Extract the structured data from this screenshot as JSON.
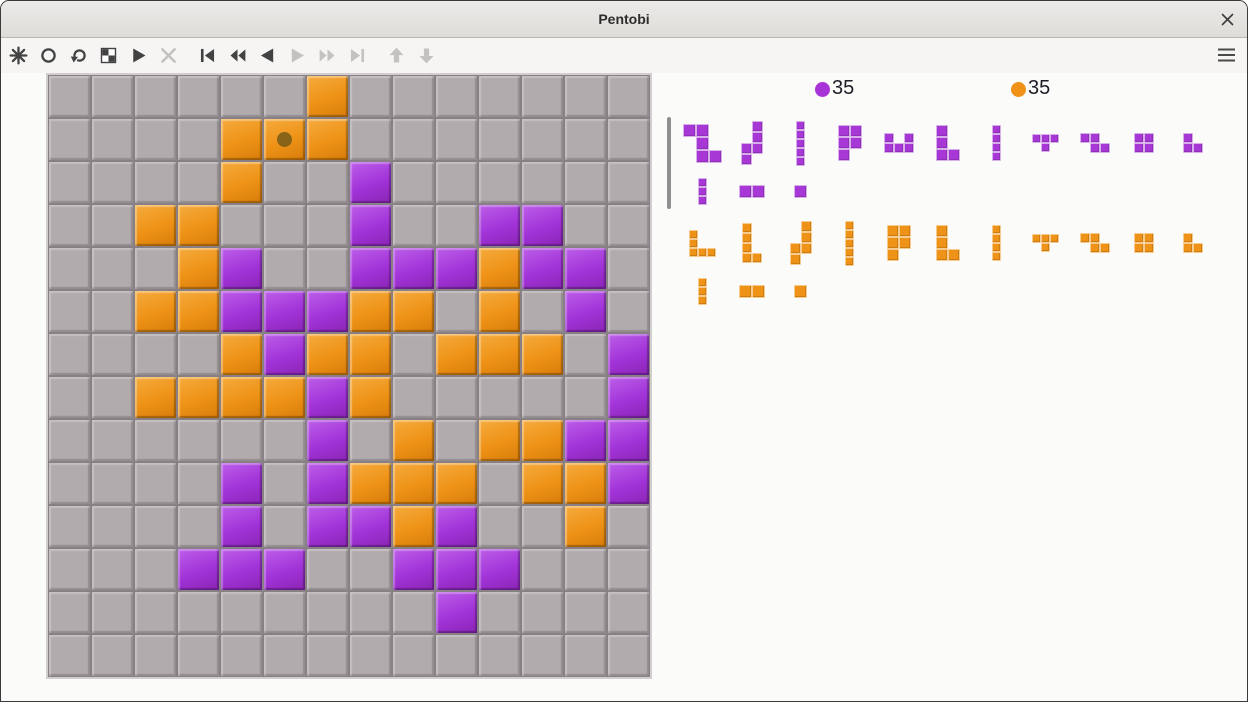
{
  "window": {
    "title": "Pentobi"
  },
  "toolbar": {
    "icons": [
      {
        "name": "new-game-icon",
        "enabled": true,
        "group_start": false
      },
      {
        "name": "rated-game-icon",
        "enabled": true,
        "group_start": false
      },
      {
        "name": "undo-move-icon",
        "enabled": true,
        "group_start": false
      },
      {
        "name": "computer-colors-icon",
        "enabled": true,
        "group_start": false
      },
      {
        "name": "play-move-icon",
        "enabled": true,
        "group_start": false
      },
      {
        "name": "stop-icon",
        "enabled": false,
        "group_start": false
      },
      {
        "name": "go-beginning-icon",
        "enabled": true,
        "group_start": true
      },
      {
        "name": "back-ten-icon",
        "enabled": true,
        "group_start": false
      },
      {
        "name": "back-icon",
        "enabled": true,
        "group_start": false
      },
      {
        "name": "forward-icon",
        "enabled": false,
        "group_start": false
      },
      {
        "name": "forward-ten-icon",
        "enabled": false,
        "group_start": false
      },
      {
        "name": "go-end-icon",
        "enabled": false,
        "group_start": false
      },
      {
        "name": "previous-variation-icon",
        "enabled": false,
        "group_start": true
      },
      {
        "name": "next-variation-icon",
        "enabled": false,
        "group_start": false
      }
    ],
    "menu_icon": "hamburger-icon"
  },
  "scores": {
    "purple": {
      "value": "35",
      "color": "#a834d8"
    },
    "orange": {
      "value": "35",
      "color": "#f09218"
    }
  },
  "board": {
    "size": 14,
    "rows": [
      "......O.......",
      "....OOO.......",
      "....O..P......",
      "..OO...P..PP..",
      "...OP..PPPOPP.",
      "..OOPPPOO.O.P.",
      "....OPOO.OOO.P",
      "..OOOOPO.....P",
      "......P.O.OOPP",
      "....P.POOO.OOP",
      "....P.PPOP..O.",
      "...PPP..PPP...",
      ".........P....",
      ".............."
    ],
    "last_move": {
      "row": 1,
      "col": 5
    }
  },
  "trays": {
    "purple": {
      "active": true,
      "rows": [
        [
          "W5",
          "N5",
          "I5",
          "P5",
          "U5",
          "L4",
          "I4",
          "T4",
          "Z4",
          "O4",
          "V3"
        ],
        [
          "I3",
          "I2",
          "P1"
        ]
      ]
    },
    "orange": {
      "active": false,
      "rows": [
        [
          "V5",
          "L5",
          "N5",
          "I5",
          "P5",
          "L4",
          "I4",
          "T4",
          "Z4",
          "O4",
          "V3"
        ],
        [
          "I3",
          "I2",
          "P1"
        ]
      ]
    }
  },
  "pieces": {
    "W5": {
      "cells": [
        [
          0,
          0
        ],
        [
          1,
          0
        ],
        [
          1,
          1
        ],
        [
          1,
          2
        ],
        [
          2,
          2
        ]
      ],
      "cell": 13
    },
    "N5": {
      "cells": [
        [
          1,
          0
        ],
        [
          1,
          1
        ],
        [
          1,
          2
        ],
        [
          0,
          2
        ],
        [
          0,
          3
        ]
      ],
      "cell": 11
    },
    "I5": {
      "cells": [
        [
          0,
          0
        ],
        [
          0,
          1
        ],
        [
          0,
          2
        ],
        [
          0,
          3
        ],
        [
          0,
          4
        ]
      ],
      "cell": 9
    },
    "P5": {
      "cells": [
        [
          0,
          0
        ],
        [
          1,
          0
        ],
        [
          0,
          1
        ],
        [
          1,
          1
        ],
        [
          0,
          2
        ]
      ],
      "cell": 12
    },
    "U5": {
      "cells": [
        [
          0,
          0
        ],
        [
          2,
          0
        ],
        [
          0,
          1
        ],
        [
          1,
          1
        ],
        [
          2,
          1
        ]
      ],
      "cell": 10
    },
    "V5": {
      "cells": [
        [
          0,
          0
        ],
        [
          0,
          1
        ],
        [
          0,
          2
        ],
        [
          1,
          2
        ],
        [
          2,
          2
        ]
      ],
      "cell": 9
    },
    "L5": {
      "cells": [
        [
          0,
          0
        ],
        [
          0,
          1
        ],
        [
          0,
          2
        ],
        [
          0,
          3
        ],
        [
          1,
          3
        ]
      ],
      "cell": 10
    },
    "L4": {
      "cells": [
        [
          0,
          0
        ],
        [
          0,
          1
        ],
        [
          0,
          2
        ],
        [
          1,
          2
        ]
      ],
      "cell": 12
    },
    "I4": {
      "cells": [
        [
          0,
          0
        ],
        [
          0,
          1
        ],
        [
          0,
          2
        ],
        [
          0,
          3
        ]
      ],
      "cell": 9
    },
    "T4": {
      "cells": [
        [
          0,
          0
        ],
        [
          1,
          0
        ],
        [
          2,
          0
        ],
        [
          1,
          1
        ]
      ],
      "cell": 9
    },
    "Z4": {
      "cells": [
        [
          0,
          0
        ],
        [
          1,
          0
        ],
        [
          1,
          1
        ],
        [
          2,
          1
        ]
      ],
      "cell": 10
    },
    "O4": {
      "cells": [
        [
          0,
          0
        ],
        [
          1,
          0
        ],
        [
          0,
          1
        ],
        [
          1,
          1
        ]
      ],
      "cell": 10
    },
    "V3": {
      "cells": [
        [
          0,
          0
        ],
        [
          0,
          1
        ],
        [
          1,
          1
        ]
      ],
      "cell": 10
    },
    "I3": {
      "cells": [
        [
          0,
          0
        ],
        [
          0,
          1
        ],
        [
          0,
          2
        ]
      ],
      "cell": 9
    },
    "I2": {
      "cells": [
        [
          0,
          0
        ],
        [
          1,
          0
        ]
      ],
      "cell": 13
    },
    "P1": {
      "cells": [
        [
          0,
          0
        ]
      ],
      "cell": 13
    }
  },
  "colors": {
    "board_empty": "#b2abae",
    "board_orange": "#ee9216",
    "board_purple": "#a233d8",
    "last_move_dot": "#6e5718",
    "turn_indicator": "#8f8f8f"
  }
}
